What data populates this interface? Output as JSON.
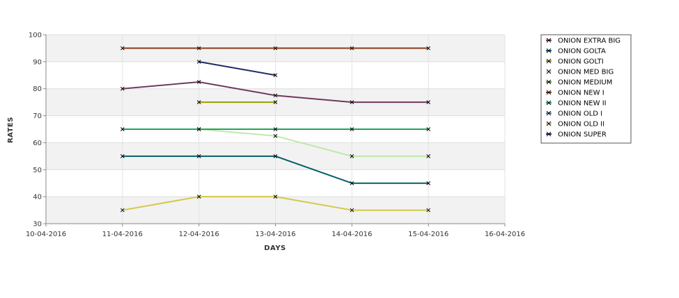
{
  "chart_data": {
    "type": "line",
    "xlabel": "DAYS",
    "ylabel": "RATES",
    "x": [
      "10-04-2016",
      "11-04-2016",
      "12-04-2016",
      "13-04-2016",
      "14-04-2016",
      "15-04-2016",
      "16-04-2016"
    ],
    "ylim": [
      30,
      100
    ],
    "yticks": [
      30,
      40,
      50,
      60,
      70,
      80,
      90,
      100
    ],
    "grid": true,
    "legend_position": "right",
    "series": [
      {
        "name": "ONION EXTRA BIG",
        "color": "#6f3a5c",
        "values": [
          null,
          80,
          82.5,
          77.5,
          75,
          75,
          null
        ]
      },
      {
        "name": "ONION GOLTA",
        "color": "#005f6b",
        "values": [
          null,
          55,
          55,
          55,
          45,
          45,
          null
        ]
      },
      {
        "name": "ONION GOLTI",
        "color": "#9a9a00",
        "values": [
          null,
          null,
          75,
          75,
          null,
          null,
          null
        ]
      },
      {
        "name": "ONION MED BIG",
        "color": "#bfe8a9",
        "values": [
          null,
          null,
          65,
          62.5,
          55,
          55,
          null
        ]
      },
      {
        "name": "ONION MEDIUM",
        "color": "#5f8f1f",
        "values": [
          null,
          null,
          null,
          null,
          null,
          null,
          null
        ]
      },
      {
        "name": "ONION NEW I",
        "color": "#8b3a1a",
        "values": [
          null,
          95,
          95,
          95,
          95,
          95,
          null
        ]
      },
      {
        "name": "ONION NEW II",
        "color": "#1fa35b",
        "values": [
          null,
          65,
          65,
          65,
          65,
          65,
          null
        ]
      },
      {
        "name": "ONION OLD I",
        "color": "#4a8fb0",
        "values": [
          null,
          null,
          null,
          null,
          null,
          null,
          null
        ]
      },
      {
        "name": "ONION OLD II",
        "color": "#d4c84a",
        "values": [
          null,
          35,
          40,
          40,
          35,
          35,
          null
        ]
      },
      {
        "name": "ONION SUPER",
        "color": "#1f2a66",
        "values": [
          null,
          null,
          90,
          85,
          null,
          null,
          null
        ]
      }
    ]
  }
}
